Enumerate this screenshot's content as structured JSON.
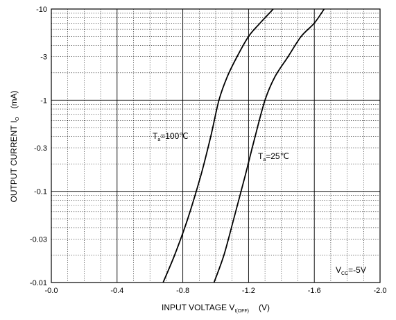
{
  "chart_data": {
    "type": "line",
    "xlabel": {
      "main": "INPUT VOLTAGE   V",
      "sub": "I(OFF)",
      "unit": "(V)"
    },
    "ylabel": {
      "main": "OUTPUT CURRENT   I",
      "sub": "O",
      "unit": "(mA)"
    },
    "x_axis": {
      "range": [
        0.0,
        -2.0
      ],
      "ticks": [
        0.0,
        -0.4,
        -0.8,
        -1.2,
        -1.6,
        -2.0
      ],
      "tick_labels": [
        "-0.0",
        "-0.4",
        "-0.8",
        "-1.2",
        "-1.6",
        "-2.0"
      ],
      "minor_step": 0.1
    },
    "y_axis": {
      "scale": "log",
      "range": [
        -0.01,
        -10
      ],
      "ticks": [
        -0.01,
        -0.03,
        -0.1,
        -0.3,
        -1,
        -3,
        -10
      ],
      "tick_labels": [
        "-0.01",
        "-0.03",
        "-0.1",
        "-0.3",
        "-1",
        "-3",
        "-10"
      ],
      "decades": [
        -0.01,
        -0.1,
        -1,
        -10
      ]
    },
    "grid": true,
    "series": [
      {
        "name": "T_a=100℃",
        "label_main": "T",
        "label_sub": "a",
        "label_rest": "=100℃",
        "x": [
          -0.68,
          -0.75,
          -0.83,
          -0.91,
          -0.97,
          -1.02,
          -1.07,
          -1.13,
          -1.2,
          -1.27,
          -1.35
        ],
        "y": [
          -0.01,
          -0.02,
          -0.05,
          -0.15,
          -0.4,
          -1.0,
          -1.8,
          -3.0,
          -5.0,
          -7.0,
          -10
        ]
      },
      {
        "name": "T_a=25℃",
        "label_main": "T",
        "label_sub": "a",
        "label_rest": "=25℃",
        "x": [
          -0.99,
          -1.05,
          -1.11,
          -1.18,
          -1.24,
          -1.3,
          -1.36,
          -1.44,
          -1.52,
          -1.6,
          -1.66
        ],
        "y": [
          -0.01,
          -0.02,
          -0.05,
          -0.15,
          -0.4,
          -1.0,
          -1.8,
          -3.0,
          -5.0,
          -7.0,
          -10
        ]
      }
    ],
    "annotations": [
      {
        "main": "V",
        "sub": "CC",
        "rest": "=-5V"
      }
    ]
  }
}
